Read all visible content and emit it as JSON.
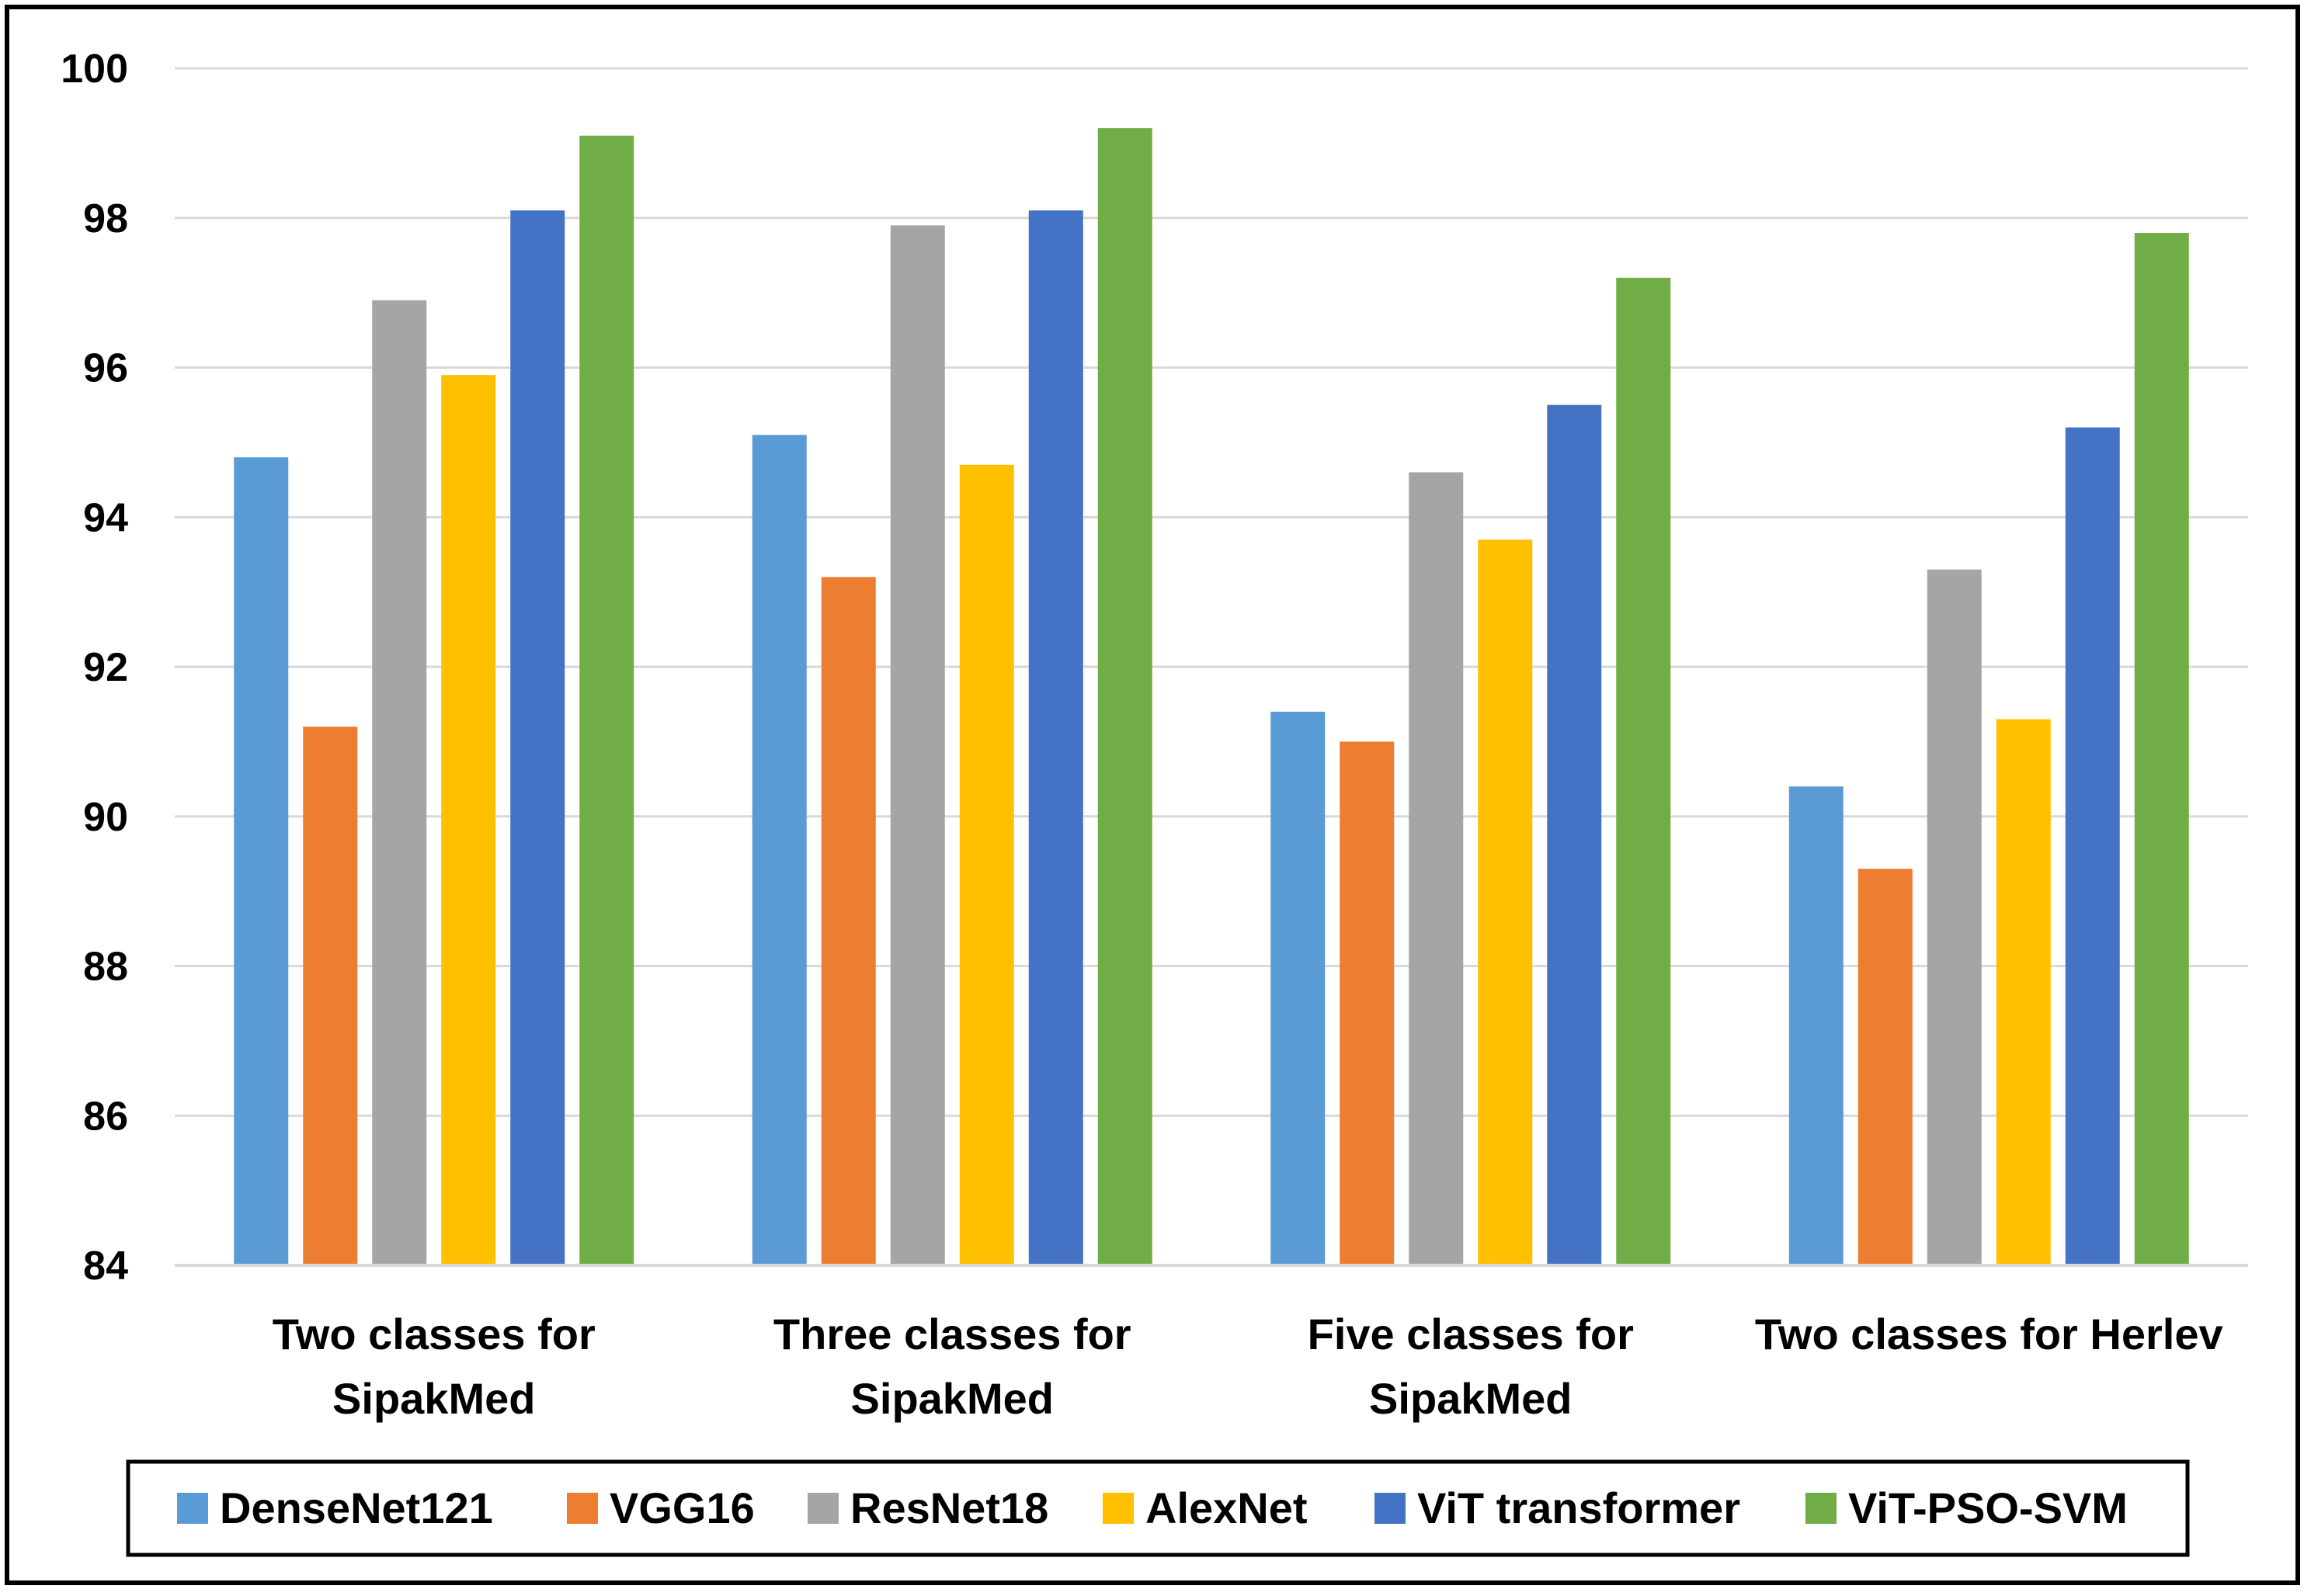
{
  "chart_data": {
    "type": "bar",
    "title": "",
    "xlabel": "",
    "ylabel": "",
    "ylim": [
      84,
      100
    ],
    "yticks": [
      84,
      86,
      88,
      90,
      92,
      94,
      96,
      98,
      100
    ],
    "grid": true,
    "legend_position": "bottom",
    "categories": [
      [
        "Two classes for",
        "SipakMed"
      ],
      [
        "Three classes for",
        "SipakMed"
      ],
      [
        "Five classes for",
        "SipakMed"
      ],
      [
        "Two classes for Herlev"
      ]
    ],
    "series": [
      {
        "name": "DenseNet121",
        "color": "#5B9BD5",
        "values": [
          94.8,
          95.1,
          91.4,
          90.4
        ]
      },
      {
        "name": "VGG16",
        "color": "#ED7D31",
        "values": [
          91.2,
          93.2,
          91.0,
          89.3
        ]
      },
      {
        "name": "ResNet18",
        "color": "#A5A5A5",
        "values": [
          96.9,
          97.9,
          94.6,
          93.3
        ]
      },
      {
        "name": "AlexNet",
        "color": "#FFC000",
        "values": [
          95.9,
          94.7,
          93.7,
          91.3
        ]
      },
      {
        "name": "ViT transformer",
        "color": "#4472C4",
        "values": [
          98.1,
          98.1,
          95.5,
          95.2
        ]
      },
      {
        "name": "ViT-PSO-SVM",
        "color": "#70AD47",
        "values": [
          99.1,
          99.2,
          97.2,
          97.8
        ]
      }
    ]
  }
}
